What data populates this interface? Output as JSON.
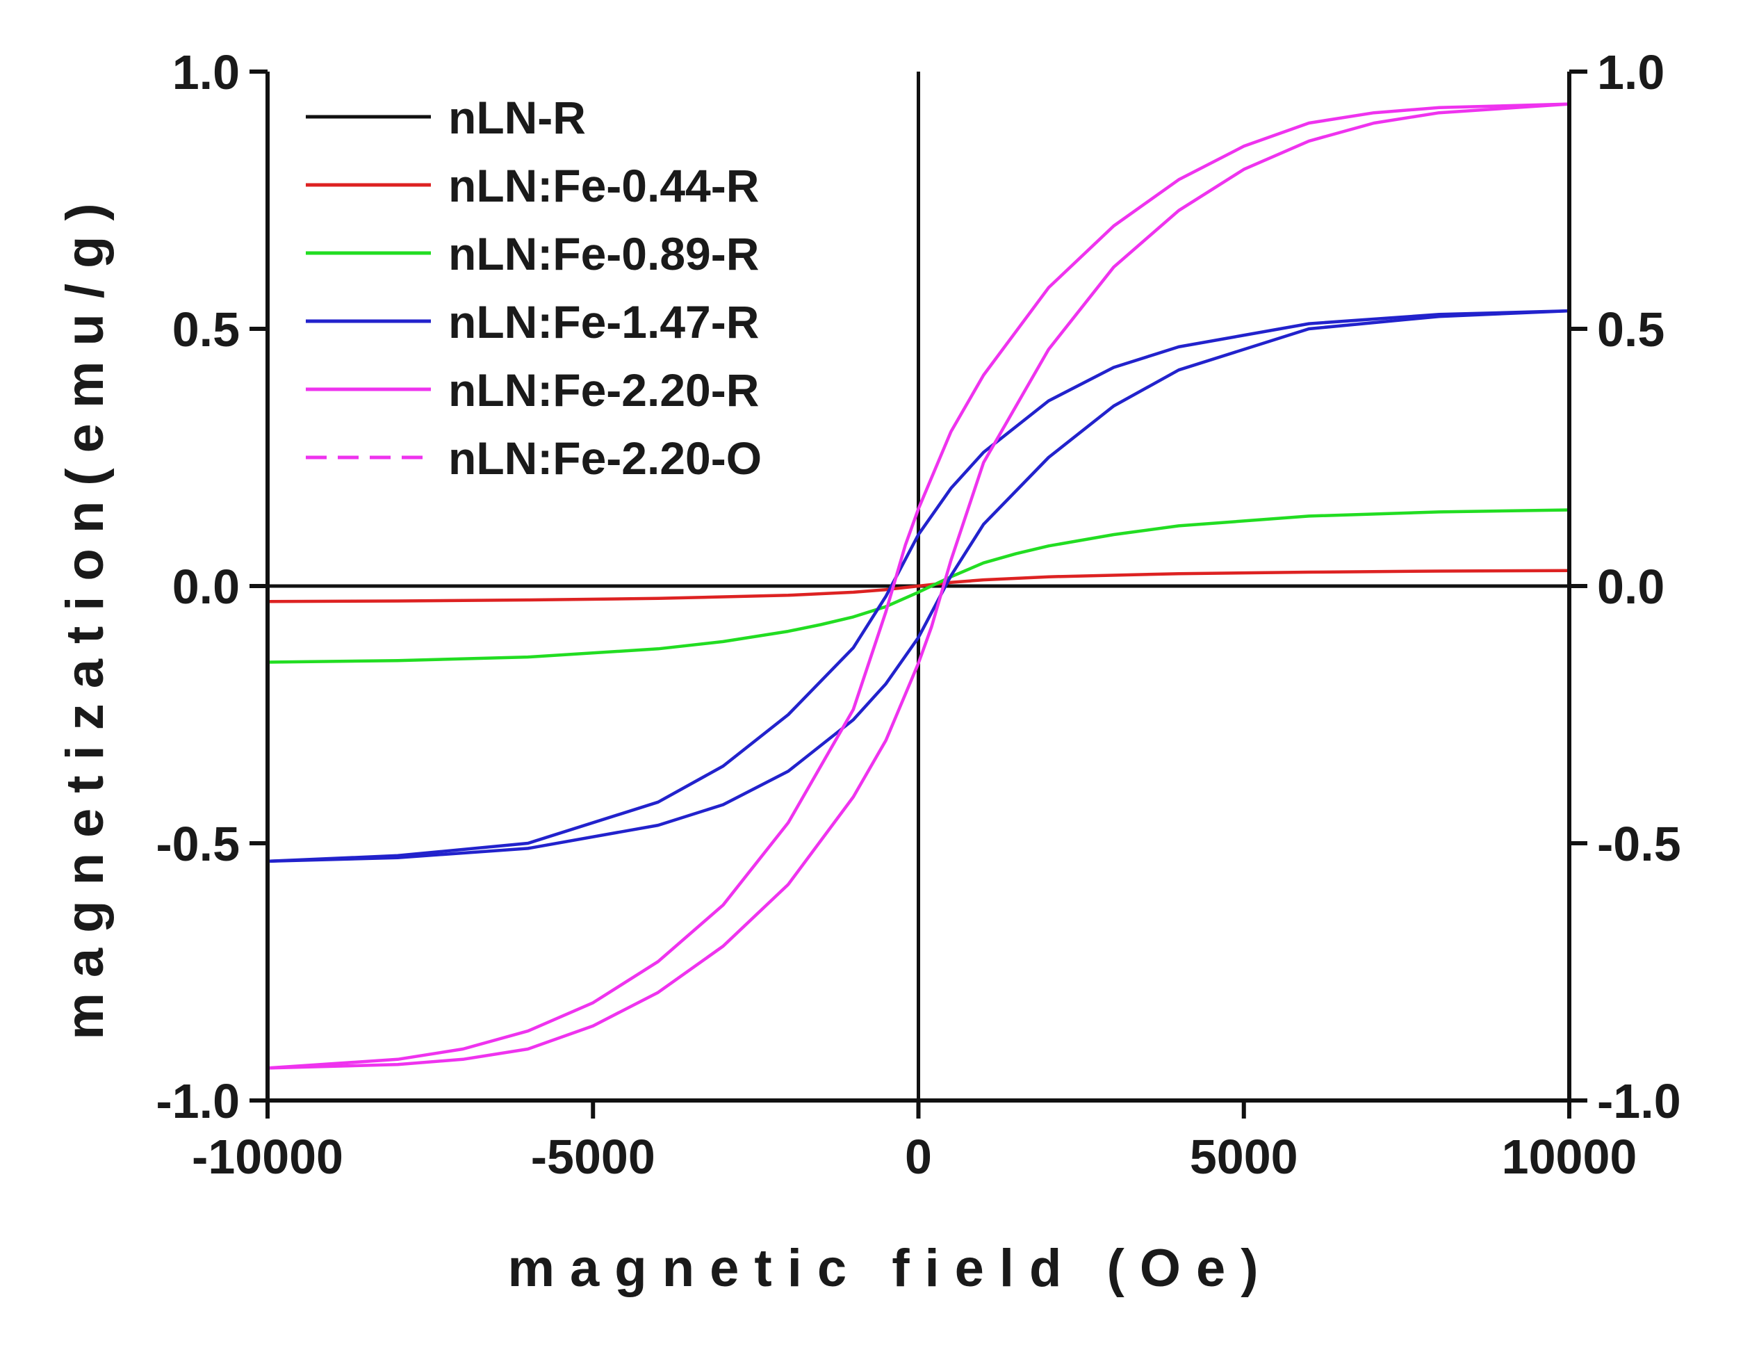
{
  "chart_data": {
    "type": "line",
    "title": "",
    "xlabel": "magnetic field (Oe)",
    "ylabel": "magnetization(emu/g)",
    "xlim": [
      -10000,
      10000
    ],
    "ylim": [
      -1.0,
      1.0
    ],
    "x_ticks": [
      -10000,
      -5000,
      0,
      5000,
      10000
    ],
    "x_tick_labels": [
      "-10000",
      "-5000",
      "0",
      "5000",
      "10000"
    ],
    "y_ticks": [
      1.0,
      0.5,
      0.0,
      -0.5,
      -1.0
    ],
    "y_tick_labels": [
      "1.0",
      "0.5",
      "0.0",
      "-0.5",
      "-1.0"
    ],
    "secondary_y_axis": true,
    "zero_lines": true,
    "grid": false,
    "legend_position": "top-left",
    "series": [
      {
        "name": "nLN-R",
        "color": "#111111",
        "dash": "solid",
        "branches": [
          {
            "x": [
              -10000,
              -5000,
              0,
              5000,
              10000
            ],
            "y": [
              0.0,
              0.0,
              0.0,
              0.0,
              0.0
            ]
          }
        ]
      },
      {
        "name": "nLN:Fe-0.44-R",
        "color": "#dd2222",
        "dash": "solid",
        "branches": [
          {
            "x": [
              -10000,
              -8000,
              -6000,
              -4000,
              -2000,
              -1000,
              -500,
              0,
              500,
              1000,
              2000,
              4000,
              6000,
              8000,
              10000
            ],
            "y": [
              -0.03,
              -0.029,
              -0.027,
              -0.024,
              -0.018,
              -0.012,
              -0.007,
              0.0,
              0.007,
              0.012,
              0.018,
              0.024,
              0.027,
              0.029,
              0.03
            ]
          }
        ]
      },
      {
        "name": "nLN:Fe-0.89-R",
        "color": "#22dd22",
        "dash": "solid",
        "branches": [
          {
            "x": [
              -10000,
              -8000,
              -6000,
              -4000,
              -3000,
              -2000,
              -1500,
              -1000,
              -500,
              0,
              500,
              1000,
              1500,
              2000,
              3000,
              4000,
              6000,
              8000,
              10000
            ],
            "y": [
              -0.148,
              -0.145,
              -0.138,
              -0.122,
              -0.108,
              -0.088,
              -0.075,
              -0.06,
              -0.04,
              -0.012,
              0.018,
              0.045,
              0.063,
              0.078,
              0.1,
              0.117,
              0.136,
              0.144,
              0.148
            ]
          }
        ]
      },
      {
        "name": "nLN:Fe-1.47-R",
        "color": "#2222cc",
        "dash": "solid",
        "branches": [
          {
            "x": [
              10000,
              8000,
              6000,
              4000,
              3000,
              2000,
              1000,
              500,
              0,
              -500,
              -1000,
              -2000,
              -3000,
              -4000,
              -6000,
              -8000,
              -10000
            ],
            "y": [
              0.535,
              0.528,
              0.51,
              0.465,
              0.425,
              0.36,
              0.26,
              0.19,
              0.1,
              -0.02,
              -0.12,
              -0.25,
              -0.35,
              -0.42,
              -0.5,
              -0.524,
              -0.535
            ]
          },
          {
            "x": [
              -10000,
              -8000,
              -6000,
              -4000,
              -3000,
              -2000,
              -1000,
              -500,
              0,
              500,
              1000,
              2000,
              3000,
              4000,
              6000,
              8000,
              10000
            ],
            "y": [
              -0.535,
              -0.528,
              -0.51,
              -0.465,
              -0.425,
              -0.36,
              -0.26,
              -0.19,
              -0.1,
              0.02,
              0.12,
              0.25,
              0.35,
              0.42,
              0.5,
              0.524,
              0.535
            ]
          }
        ]
      },
      {
        "name": "nLN:Fe-2.20-R",
        "color": "#ee33ee",
        "dash": "solid",
        "branches": [
          {
            "x": [
              10000,
              8000,
              7000,
              6000,
              5000,
              4000,
              3000,
              2000,
              1000,
              500,
              200,
              0,
              -200,
              -500,
              -1000,
              -2000,
              -3000,
              -4000,
              -5000,
              -6000,
              -7000,
              -8000,
              -10000
            ],
            "y": [
              0.937,
              0.93,
              0.92,
              0.9,
              0.855,
              0.79,
              0.7,
              0.58,
              0.41,
              0.3,
              0.21,
              0.15,
              0.08,
              -0.05,
              -0.24,
              -0.46,
              -0.62,
              -0.73,
              -0.81,
              -0.865,
              -0.9,
              -0.92,
              -0.937
            ]
          },
          {
            "x": [
              -10000,
              -8000,
              -7000,
              -6000,
              -5000,
              -4000,
              -3000,
              -2000,
              -1000,
              -500,
              -200,
              0,
              200,
              500,
              1000,
              2000,
              3000,
              4000,
              5000,
              6000,
              7000,
              8000,
              10000
            ],
            "y": [
              -0.937,
              -0.93,
              -0.92,
              -0.9,
              -0.855,
              -0.79,
              -0.7,
              -0.58,
              -0.41,
              -0.3,
              -0.21,
              -0.15,
              -0.08,
              0.05,
              0.24,
              0.46,
              0.62,
              0.73,
              0.81,
              0.865,
              0.9,
              0.92,
              0.937
            ]
          }
        ]
      },
      {
        "name": "nLN:Fe-2.20-O",
        "color": "#ee33ee",
        "dash": "dashed",
        "branches": [
          {
            "x": [
              10000,
              8000,
              7000,
              6000,
              5000,
              4000,
              3000,
              2000,
              1000,
              500,
              200,
              0,
              -200,
              -500,
              -1000,
              -2000,
              -3000,
              -4000,
              -5000,
              -6000,
              -7000,
              -8000,
              -10000
            ],
            "y": [
              0.937,
              0.93,
              0.92,
              0.9,
              0.855,
              0.79,
              0.7,
              0.58,
              0.41,
              0.3,
              0.21,
              0.15,
              0.08,
              -0.05,
              -0.24,
              -0.46,
              -0.62,
              -0.73,
              -0.81,
              -0.865,
              -0.9,
              -0.92,
              -0.937
            ]
          },
          {
            "x": [
              -10000,
              -8000,
              -7000,
              -6000,
              -5000,
              -4000,
              -3000,
              -2000,
              -1000,
              -500,
              -200,
              0,
              200,
              500,
              1000,
              2000,
              3000,
              4000,
              5000,
              6000,
              7000,
              8000,
              10000
            ],
            "y": [
              -0.937,
              -0.93,
              -0.92,
              -0.9,
              -0.855,
              -0.79,
              -0.7,
              -0.58,
              -0.41,
              -0.3,
              -0.21,
              -0.15,
              -0.08,
              0.05,
              0.24,
              0.46,
              0.62,
              0.73,
              0.81,
              0.865,
              0.9,
              0.92,
              0.937
            ]
          }
        ]
      }
    ]
  }
}
